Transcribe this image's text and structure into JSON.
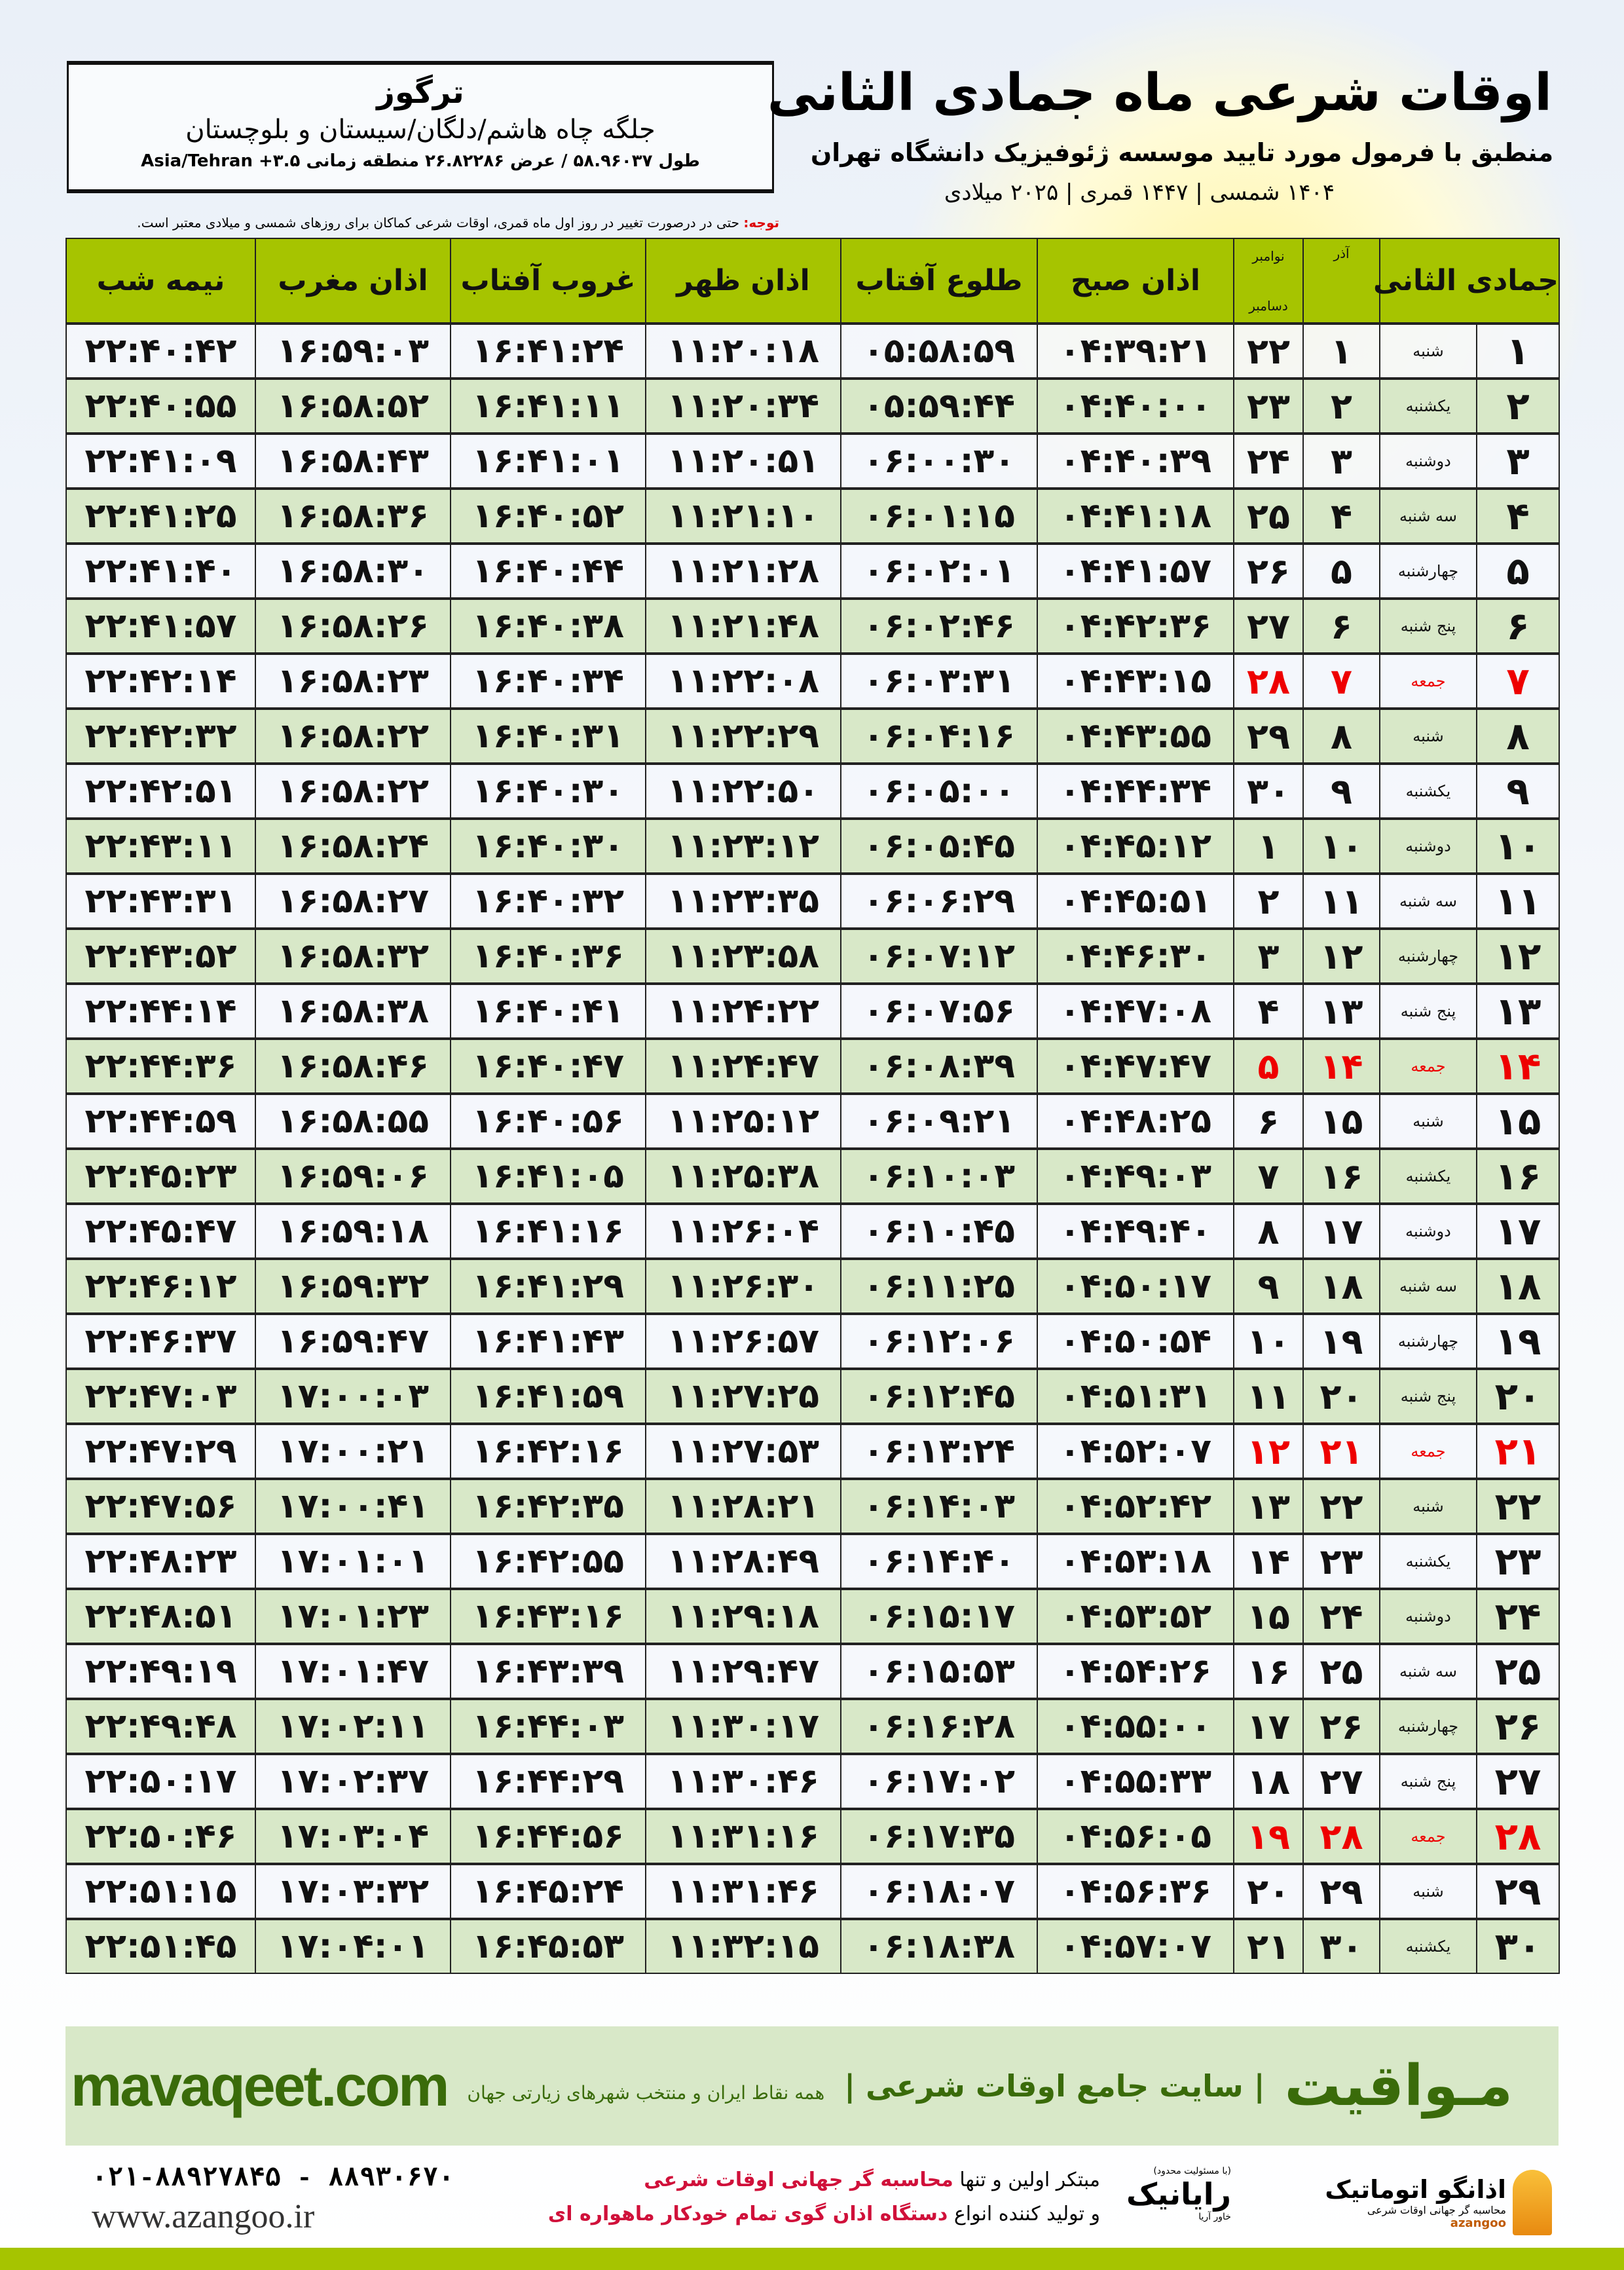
{
  "header": {
    "title": "اوقات شرعی ماه جمادی الثانی",
    "subtitle": "منطبق با فرمول مورد تایید موسسه ژئوفیزیک دانشگاه تهران",
    "years": "۱۴۰۴ شمسی | ۱۴۴۷ قمری | ۲۰۲۵ میلادی"
  },
  "location": {
    "city": "ترگوز",
    "region": "جلگه چاه هاشم/دلگان/سیستان و بلوچستان",
    "coords": "طول ۵۸.۹۶۰۳۷ / عرض ۲۶.۸۲۲۸۶ منطقه زمانی ۳.۵+ Asia/Tehran"
  },
  "note": {
    "label": "توجه:",
    "text": " حتی در درصورت تغییر در روز اول ماه قمری، اوقات شرعی کماکان برای روزهای شمسی و میلادی معتبر است."
  },
  "table": {
    "headers": {
      "hijri": "جمادی الثانی",
      "azar": "آذر",
      "greg_top": "نوامبر",
      "greg_bottom": "دسامبر",
      "fajr": "اذان صبح",
      "sunrise": "طلوع آفتاب",
      "dhuhr": "اذان ظهر",
      "sunset": "غروب آفتاب",
      "maghrib": "اذان مغرب",
      "midnight": "نیمه شب"
    },
    "holiday_color": "#e00000",
    "rows": [
      {
        "day": "۱",
        "weekday": "شنبه",
        "azar": "۱",
        "greg": "۲۲",
        "fajr": "۰۴:۳۹:۲۱",
        "sunrise": "۰۵:۵۸:۵۹",
        "dhuhr": "۱۱:۲۰:۱۸",
        "sunset": "۱۶:۴۱:۲۴",
        "maghrib": "۱۶:۵۹:۰۳",
        "midnight": "۲۲:۴۰:۴۲"
      },
      {
        "day": "۲",
        "weekday": "یکشنبه",
        "azar": "۲",
        "greg": "۲۳",
        "fajr": "۰۴:۴۰:۰۰",
        "sunrise": "۰۵:۵۹:۴۴",
        "dhuhr": "۱۱:۲۰:۳۴",
        "sunset": "۱۶:۴۱:۱۱",
        "maghrib": "۱۶:۵۸:۵۲",
        "midnight": "۲۲:۴۰:۵۵"
      },
      {
        "day": "۳",
        "weekday": "دوشنبه",
        "azar": "۳",
        "greg": "۲۴",
        "fajr": "۰۴:۴۰:۳۹",
        "sunrise": "۰۶:۰۰:۳۰",
        "dhuhr": "۱۱:۲۰:۵۱",
        "sunset": "۱۶:۴۱:۰۱",
        "maghrib": "۱۶:۵۸:۴۳",
        "midnight": "۲۲:۴۱:۰۹"
      },
      {
        "day": "۴",
        "weekday": "سه شنبه",
        "azar": "۴",
        "greg": "۲۵",
        "fajr": "۰۴:۴۱:۱۸",
        "sunrise": "۰۶:۰۱:۱۵",
        "dhuhr": "۱۱:۲۱:۱۰",
        "sunset": "۱۶:۴۰:۵۲",
        "maghrib": "۱۶:۵۸:۳۶",
        "midnight": "۲۲:۴۱:۲۵"
      },
      {
        "day": "۵",
        "weekday": "چهارشنبه",
        "azar": "۵",
        "greg": "۲۶",
        "fajr": "۰۴:۴۱:۵۷",
        "sunrise": "۰۶:۰۲:۰۱",
        "dhuhr": "۱۱:۲۱:۲۸",
        "sunset": "۱۶:۴۰:۴۴",
        "maghrib": "۱۶:۵۸:۳۰",
        "midnight": "۲۲:۴۱:۴۰"
      },
      {
        "day": "۶",
        "weekday": "پنج شنبه",
        "azar": "۶",
        "greg": "۲۷",
        "fajr": "۰۴:۴۲:۳۶",
        "sunrise": "۰۶:۰۲:۴۶",
        "dhuhr": "۱۱:۲۱:۴۸",
        "sunset": "۱۶:۴۰:۳۸",
        "maghrib": "۱۶:۵۸:۲۶",
        "midnight": "۲۲:۴۱:۵۷"
      },
      {
        "day": "۷",
        "weekday": "جمعه",
        "azar": "۷",
        "greg": "۲۸",
        "holiday": true,
        "fajr": "۰۴:۴۳:۱۵",
        "sunrise": "۰۶:۰۳:۳۱",
        "dhuhr": "۱۱:۲۲:۰۸",
        "sunset": "۱۶:۴۰:۳۴",
        "maghrib": "۱۶:۵۸:۲۳",
        "midnight": "۲۲:۴۲:۱۴"
      },
      {
        "day": "۸",
        "weekday": "شنبه",
        "azar": "۸",
        "greg": "۲۹",
        "fajr": "۰۴:۴۳:۵۵",
        "sunrise": "۰۶:۰۴:۱۶",
        "dhuhr": "۱۱:۲۲:۲۹",
        "sunset": "۱۶:۴۰:۳۱",
        "maghrib": "۱۶:۵۸:۲۲",
        "midnight": "۲۲:۴۲:۳۲"
      },
      {
        "day": "۹",
        "weekday": "یکشنبه",
        "azar": "۹",
        "greg": "۳۰",
        "fajr": "۰۴:۴۴:۳۴",
        "sunrise": "۰۶:۰۵:۰۰",
        "dhuhr": "۱۱:۲۲:۵۰",
        "sunset": "۱۶:۴۰:۳۰",
        "maghrib": "۱۶:۵۸:۲۲",
        "midnight": "۲۲:۴۲:۵۱"
      },
      {
        "day": "۱۰",
        "weekday": "دوشنبه",
        "azar": "۱۰",
        "greg": "۱",
        "fajr": "۰۴:۴۵:۱۲",
        "sunrise": "۰۶:۰۵:۴۵",
        "dhuhr": "۱۱:۲۳:۱۲",
        "sunset": "۱۶:۴۰:۳۰",
        "maghrib": "۱۶:۵۸:۲۴",
        "midnight": "۲۲:۴۳:۱۱"
      },
      {
        "day": "۱۱",
        "weekday": "سه شنبه",
        "azar": "۱۱",
        "greg": "۲",
        "fajr": "۰۴:۴۵:۵۱",
        "sunrise": "۰۶:۰۶:۲۹",
        "dhuhr": "۱۱:۲۳:۳۵",
        "sunset": "۱۶:۴۰:۳۲",
        "maghrib": "۱۶:۵۸:۲۷",
        "midnight": "۲۲:۴۳:۳۱"
      },
      {
        "day": "۱۲",
        "weekday": "چهارشنبه",
        "azar": "۱۲",
        "greg": "۳",
        "fajr": "۰۴:۴۶:۳۰",
        "sunrise": "۰۶:۰۷:۱۲",
        "dhuhr": "۱۱:۲۳:۵۸",
        "sunset": "۱۶:۴۰:۳۶",
        "maghrib": "۱۶:۵۸:۳۲",
        "midnight": "۲۲:۴۳:۵۲"
      },
      {
        "day": "۱۳",
        "weekday": "پنج شنبه",
        "azar": "۱۳",
        "greg": "۴",
        "fajr": "۰۴:۴۷:۰۸",
        "sunrise": "۰۶:۰۷:۵۶",
        "dhuhr": "۱۱:۲۴:۲۲",
        "sunset": "۱۶:۴۰:۴۱",
        "maghrib": "۱۶:۵۸:۳۸",
        "midnight": "۲۲:۴۴:۱۴"
      },
      {
        "day": "۱۴",
        "weekday": "جمعه",
        "azar": "۱۴",
        "greg": "۵",
        "holiday": true,
        "fajr": "۰۴:۴۷:۴۷",
        "sunrise": "۰۶:۰۸:۳۹",
        "dhuhr": "۱۱:۲۴:۴۷",
        "sunset": "۱۶:۴۰:۴۷",
        "maghrib": "۱۶:۵۸:۴۶",
        "midnight": "۲۲:۴۴:۳۶"
      },
      {
        "day": "۱۵",
        "weekday": "شنبه",
        "azar": "۱۵",
        "greg": "۶",
        "fajr": "۰۴:۴۸:۲۵",
        "sunrise": "۰۶:۰۹:۲۱",
        "dhuhr": "۱۱:۲۵:۱۲",
        "sunset": "۱۶:۴۰:۵۶",
        "maghrib": "۱۶:۵۸:۵۵",
        "midnight": "۲۲:۴۴:۵۹"
      },
      {
        "day": "۱۶",
        "weekday": "یکشنبه",
        "azar": "۱۶",
        "greg": "۷",
        "fajr": "۰۴:۴۹:۰۳",
        "sunrise": "۰۶:۱۰:۰۳",
        "dhuhr": "۱۱:۲۵:۳۸",
        "sunset": "۱۶:۴۱:۰۵",
        "maghrib": "۱۶:۵۹:۰۶",
        "midnight": "۲۲:۴۵:۲۳"
      },
      {
        "day": "۱۷",
        "weekday": "دوشنبه",
        "azar": "۱۷",
        "greg": "۸",
        "fajr": "۰۴:۴۹:۴۰",
        "sunrise": "۰۶:۱۰:۴۵",
        "dhuhr": "۱۱:۲۶:۰۴",
        "sunset": "۱۶:۴۱:۱۶",
        "maghrib": "۱۶:۵۹:۱۸",
        "midnight": "۲۲:۴۵:۴۷"
      },
      {
        "day": "۱۸",
        "weekday": "سه شنبه",
        "azar": "۱۸",
        "greg": "۹",
        "fajr": "۰۴:۵۰:۱۷",
        "sunrise": "۰۶:۱۱:۲۵",
        "dhuhr": "۱۱:۲۶:۳۰",
        "sunset": "۱۶:۴۱:۲۹",
        "maghrib": "۱۶:۵۹:۳۲",
        "midnight": "۲۲:۴۶:۱۲"
      },
      {
        "day": "۱۹",
        "weekday": "چهارشنبه",
        "azar": "۱۹",
        "greg": "۱۰",
        "fajr": "۰۴:۵۰:۵۴",
        "sunrise": "۰۶:۱۲:۰۶",
        "dhuhr": "۱۱:۲۶:۵۷",
        "sunset": "۱۶:۴۱:۴۳",
        "maghrib": "۱۶:۵۹:۴۷",
        "midnight": "۲۲:۴۶:۳۷"
      },
      {
        "day": "۲۰",
        "weekday": "پنج شنبه",
        "azar": "۲۰",
        "greg": "۱۱",
        "fajr": "۰۴:۵۱:۳۱",
        "sunrise": "۰۶:۱۲:۴۵",
        "dhuhr": "۱۱:۲۷:۲۵",
        "sunset": "۱۶:۴۱:۵۹",
        "maghrib": "۱۷:۰۰:۰۳",
        "midnight": "۲۲:۴۷:۰۳"
      },
      {
        "day": "۲۱",
        "weekday": "جمعه",
        "azar": "۲۱",
        "greg": "۱۲",
        "holiday": true,
        "fajr": "۰۴:۵۲:۰۷",
        "sunrise": "۰۶:۱۳:۲۴",
        "dhuhr": "۱۱:۲۷:۵۳",
        "sunset": "۱۶:۴۲:۱۶",
        "maghrib": "۱۷:۰۰:۲۱",
        "midnight": "۲۲:۴۷:۲۹"
      },
      {
        "day": "۲۲",
        "weekday": "شنبه",
        "azar": "۲۲",
        "greg": "۱۳",
        "fajr": "۰۴:۵۲:۴۲",
        "sunrise": "۰۶:۱۴:۰۳",
        "dhuhr": "۱۱:۲۸:۲۱",
        "sunset": "۱۶:۴۲:۳۵",
        "maghrib": "۱۷:۰۰:۴۱",
        "midnight": "۲۲:۴۷:۵۶"
      },
      {
        "day": "۲۳",
        "weekday": "یکشنبه",
        "azar": "۲۳",
        "greg": "۱۴",
        "fajr": "۰۴:۵۳:۱۸",
        "sunrise": "۰۶:۱۴:۴۰",
        "dhuhr": "۱۱:۲۸:۴۹",
        "sunset": "۱۶:۴۲:۵۵",
        "maghrib": "۱۷:۰۱:۰۱",
        "midnight": "۲۲:۴۸:۲۳"
      },
      {
        "day": "۲۴",
        "weekday": "دوشنبه",
        "azar": "۲۴",
        "greg": "۱۵",
        "fajr": "۰۴:۵۳:۵۲",
        "sunrise": "۰۶:۱۵:۱۷",
        "dhuhr": "۱۱:۲۹:۱۸",
        "sunset": "۱۶:۴۳:۱۶",
        "maghrib": "۱۷:۰۱:۲۳",
        "midnight": "۲۲:۴۸:۵۱"
      },
      {
        "day": "۲۵",
        "weekday": "سه شنبه",
        "azar": "۲۵",
        "greg": "۱۶",
        "fajr": "۰۴:۵۴:۲۶",
        "sunrise": "۰۶:۱۵:۵۳",
        "dhuhr": "۱۱:۲۹:۴۷",
        "sunset": "۱۶:۴۳:۳۹",
        "maghrib": "۱۷:۰۱:۴۷",
        "midnight": "۲۲:۴۹:۱۹"
      },
      {
        "day": "۲۶",
        "weekday": "چهارشنبه",
        "azar": "۲۶",
        "greg": "۱۷",
        "fajr": "۰۴:۵۵:۰۰",
        "sunrise": "۰۶:۱۶:۲۸",
        "dhuhr": "۱۱:۳۰:۱۷",
        "sunset": "۱۶:۴۴:۰۳",
        "maghrib": "۱۷:۰۲:۱۱",
        "midnight": "۲۲:۴۹:۴۸"
      },
      {
        "day": "۲۷",
        "weekday": "پنج شنبه",
        "azar": "۲۷",
        "greg": "۱۸",
        "fajr": "۰۴:۵۵:۳۳",
        "sunrise": "۰۶:۱۷:۰۲",
        "dhuhr": "۱۱:۳۰:۴۶",
        "sunset": "۱۶:۴۴:۲۹",
        "maghrib": "۱۷:۰۲:۳۷",
        "midnight": "۲۲:۵۰:۱۷"
      },
      {
        "day": "۲۸",
        "weekday": "جمعه",
        "azar": "۲۸",
        "greg": "۱۹",
        "holiday": true,
        "fajr": "۰۴:۵۶:۰۵",
        "sunrise": "۰۶:۱۷:۳۵",
        "dhuhr": "۱۱:۳۱:۱۶",
        "sunset": "۱۶:۴۴:۵۶",
        "maghrib": "۱۷:۰۳:۰۴",
        "midnight": "۲۲:۵۰:۴۶"
      },
      {
        "day": "۲۹",
        "weekday": "شنبه",
        "azar": "۲۹",
        "greg": "۲۰",
        "fajr": "۰۴:۵۶:۳۶",
        "sunrise": "۰۶:۱۸:۰۷",
        "dhuhr": "۱۱:۳۱:۴۶",
        "sunset": "۱۶:۴۵:۲۴",
        "maghrib": "۱۷:۰۳:۳۲",
        "midnight": "۲۲:۵۱:۱۵"
      },
      {
        "day": "۳۰",
        "weekday": "یکشنبه",
        "azar": "۳۰",
        "greg": "۲۱",
        "fajr": "۰۴:۵۷:۰۷",
        "sunrise": "۰۶:۱۸:۳۸",
        "dhuhr": "۱۱:۳۲:۱۵",
        "sunset": "۱۶:۴۵:۵۳",
        "maghrib": "۱۷:۰۴:۰۱",
        "midnight": "۲۲:۵۱:۴۵"
      }
    ]
  },
  "banner": {
    "brand": "مـواقیت",
    "tagline": "| سایت جامع اوقات شرعی |",
    "sub": "همه نقاط ایران و منتخب شهرهای زیارتی جهان",
    "site": "mavaqeet.com",
    "color": "#3a6b0a"
  },
  "footer": {
    "phone": "۰۲۱-۸۸۹۲۷۸۴۵ - ۸۸۹۳۰۶۷۰",
    "www": "www.azangoo.ir",
    "promo1_a": "مبتکر اولین و تنها ",
    "promo1_b": "محاسبه گر جهانی اوقات شرعی",
    "promo2_a": "و تولید کننده انواع ",
    "promo2_b": "دستگاه اذان گوی تمام خودکار ماهواره ای",
    "rayanik": "رایانیک",
    "rayanik_sub": "خاور آریا",
    "rayanik_note": "(با مسئولیت محدود)",
    "azangoo": "اذانگو اتوماتیک",
    "azangoo_sub": "محاسبه گر جهانی اوقات شرعی",
    "azangoo_en": "azangoo"
  }
}
